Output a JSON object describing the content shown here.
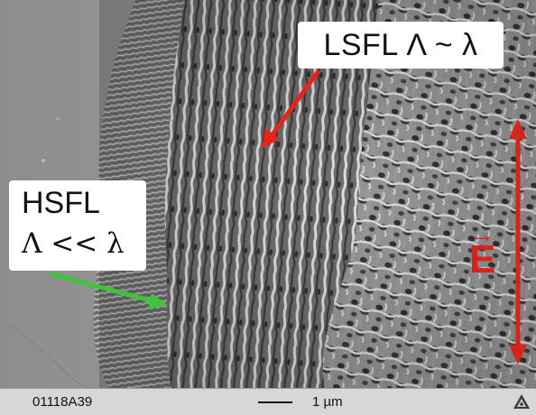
{
  "image": {
    "labels": {
      "lsfl": "LSFL Λ ~ λ",
      "hsfl_line1": "HSFL",
      "hsfl_line2": "Λ << λ",
      "efield": "E",
      "efield_vector_mark": "→"
    },
    "scale_bar": {
      "sample_id": "01118A39",
      "length_label": "1 µm"
    },
    "icons": {
      "corner": "triangle-logo-icon"
    },
    "colors": {
      "lsfl_arrow": "#e8231c",
      "hsfl_arrow": "#3ec33a",
      "efield_arrow": "#d6231b",
      "infobar_bg": "#d7d7d7",
      "label_bg": "#ffffff"
    }
  }
}
